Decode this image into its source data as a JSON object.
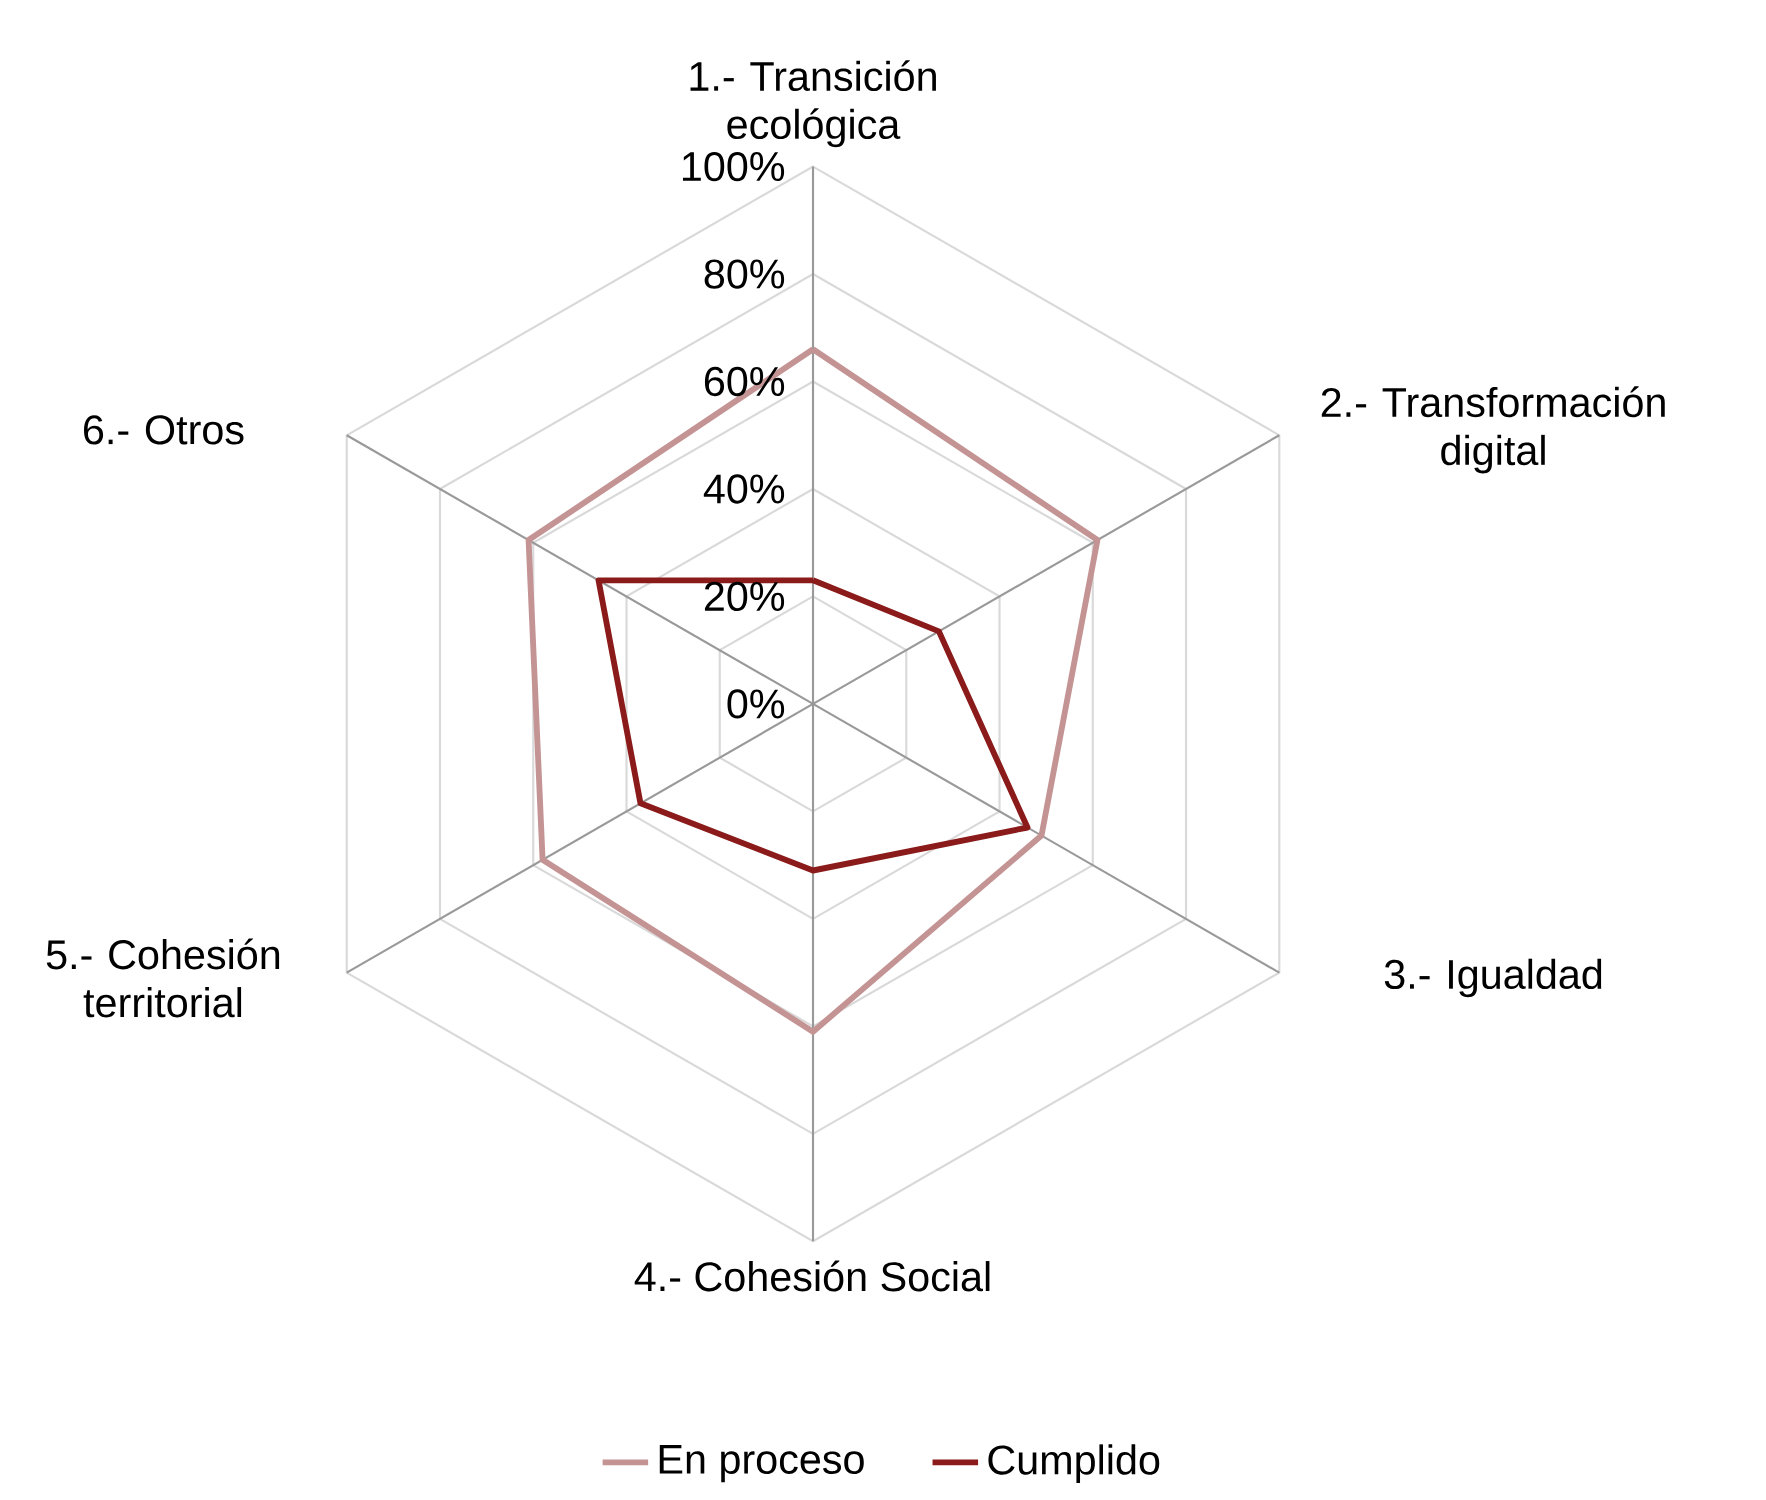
{
  "chart_data": {
    "type": "radar",
    "categories": [
      "1.- Transición ecológica",
      "2.- Transformación digital",
      "3.- Igualdad",
      "4.- Cohesión Social",
      "5.- Cohesión territorial",
      "6.- Otros"
    ],
    "series": [
      {
        "name": "En proceso",
        "color": "#c49494",
        "values": [
          66,
          61,
          49,
          61,
          58,
          61
        ]
      },
      {
        "name": "Cumplido",
        "color": "#8b1a1a",
        "values": [
          23,
          27,
          46,
          31,
          37,
          46
        ]
      }
    ],
    "ylim": [
      0,
      100
    ],
    "yticks": [
      {
        "value": 0,
        "label": "0%"
      },
      {
        "value": 20,
        "label": "20%"
      },
      {
        "value": 40,
        "label": "40%"
      },
      {
        "value": 60,
        "label": "60%"
      },
      {
        "value": 80,
        "label": "80%"
      },
      {
        "value": 100,
        "label": "100%"
      }
    ],
    "grid": true,
    "legend": "bottom",
    "line_style": "solid"
  }
}
